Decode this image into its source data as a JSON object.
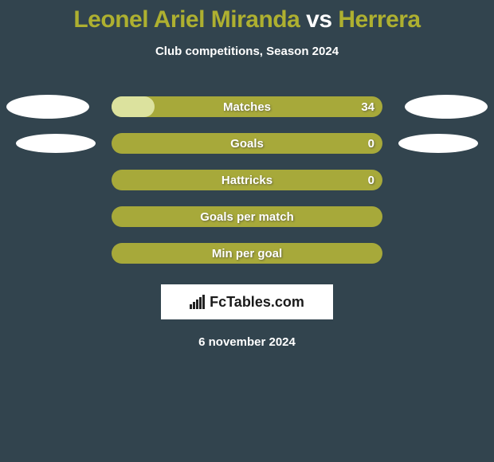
{
  "title": {
    "player1": "Leonel Ariel Miranda",
    "vs": "vs",
    "player2": "Herrera",
    "player1_color": "#aeb030",
    "vs_color": "#ffffff",
    "player2_color": "#aeb030",
    "fontsize": 30
  },
  "subtitle": "Club competitions, Season 2024",
  "background_color": "#32444e",
  "bar_track_width": 340,
  "bar_track_height": 26,
  "bar_track_radius": 13,
  "stats": [
    {
      "label": "Matches",
      "value_right": "34",
      "track_color": "#a7a93a",
      "fill_color": "#dce29e",
      "fill_pct": 16,
      "fill_side": "left",
      "show_left_ellipse": true,
      "show_right_ellipse": true,
      "ellipse_size": "large"
    },
    {
      "label": "Goals",
      "value_right": "0",
      "track_color": "#a7a93a",
      "fill_color": "#dce29e",
      "fill_pct": 0,
      "fill_side": "left",
      "show_left_ellipse": true,
      "show_right_ellipse": true,
      "ellipse_size": "small"
    },
    {
      "label": "Hattricks",
      "value_right": "0",
      "track_color": "#a7a93a",
      "fill_color": "#dce29e",
      "fill_pct": 0,
      "fill_side": "left",
      "show_left_ellipse": false,
      "show_right_ellipse": false
    },
    {
      "label": "Goals per match",
      "value_right": "",
      "track_color": "#a7a93a",
      "fill_color": "#dce29e",
      "fill_pct": 0,
      "fill_side": "left",
      "show_left_ellipse": false,
      "show_right_ellipse": false
    },
    {
      "label": "Min per goal",
      "value_right": "",
      "track_color": "#a7a93a",
      "fill_color": "#dce29e",
      "fill_pct": 0,
      "fill_side": "left",
      "show_left_ellipse": false,
      "show_right_ellipse": false
    }
  ],
  "logo": {
    "text": "FcTables.com",
    "bg_color": "#ffffff",
    "text_color": "#1a1a1a",
    "icon_bars": [
      6,
      9,
      12,
      15,
      18
    ]
  },
  "date": "6 november 2024"
}
